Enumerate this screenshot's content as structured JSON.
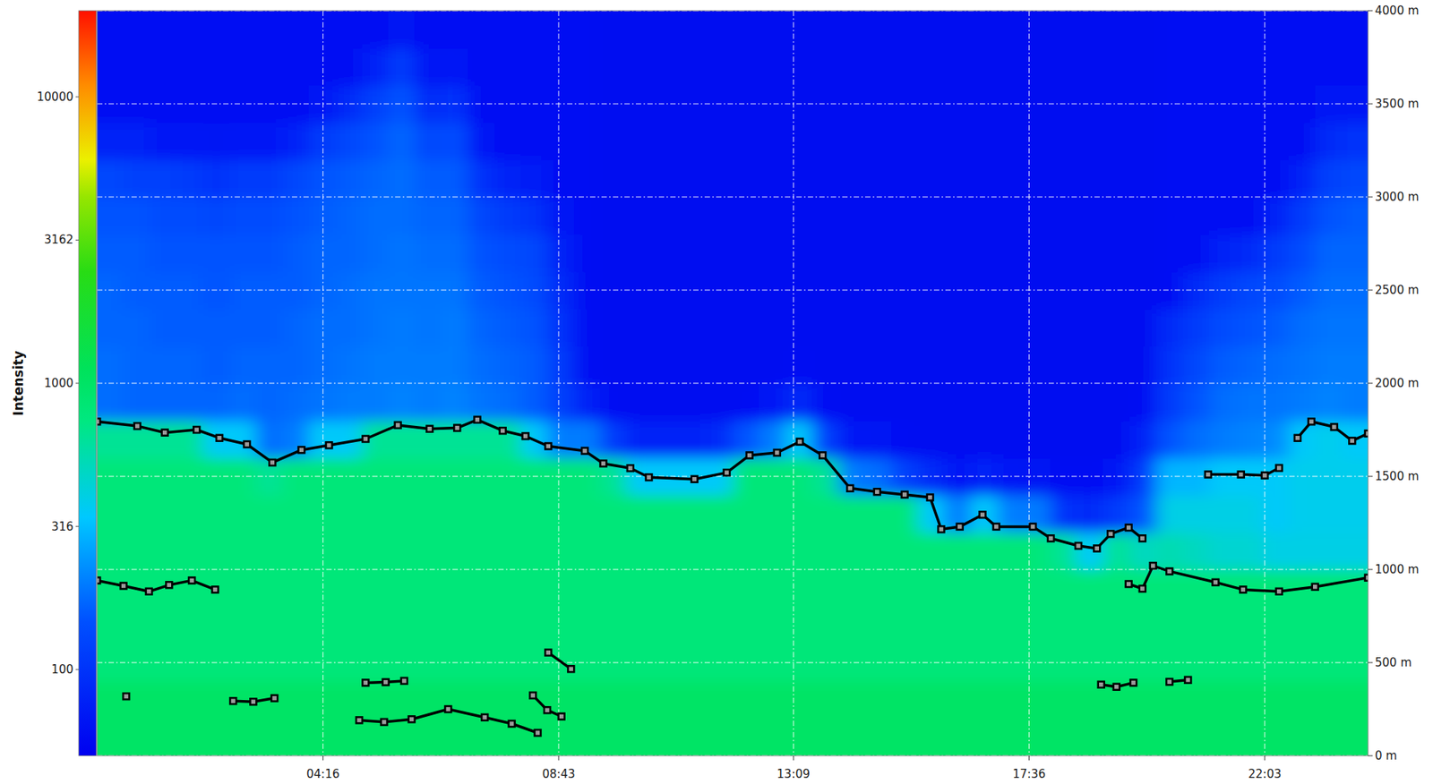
{
  "chart_data": {
    "type": "heatmap",
    "xlim": [
      0,
      24
    ],
    "xticks": [
      {
        "value": 4.2667,
        "label": "04:16"
      },
      {
        "value": 8.7167,
        "label": "08:43"
      },
      {
        "value": 13.15,
        "label": "13:09"
      },
      {
        "value": 17.6,
        "label": "17:36"
      },
      {
        "value": 22.05,
        "label": "22:03"
      }
    ],
    "ylim": [
      0,
      4000
    ],
    "yticks": [
      {
        "value": 0,
        "label": "0 m"
      },
      {
        "value": 500,
        "label": "500 m"
      },
      {
        "value": 1000,
        "label": "1000 m"
      },
      {
        "value": 1500,
        "label": "1500 m"
      },
      {
        "value": 2000,
        "label": "2000 m"
      },
      {
        "value": 2500,
        "label": "2500 m"
      },
      {
        "value": 3000,
        "label": "3000 m"
      },
      {
        "value": 3500,
        "label": "3500 m"
      },
      {
        "value": 4000,
        "label": "4000 m"
      }
    ],
    "grid": true,
    "colorbar": {
      "title": "Intensity",
      "range": [
        50,
        20000
      ],
      "ticks": [
        100,
        316,
        1000,
        3162,
        10000
      ],
      "log": true
    },
    "x_bins": [
      0,
      0.5,
      1,
      1.5,
      2,
      2.5,
      3,
      3.5,
      4,
      4.5,
      5,
      5.5,
      6,
      6.5,
      7,
      7.5,
      8,
      8.5,
      9,
      9.5,
      10,
      10.5,
      11,
      11.5,
      12,
      12.5,
      13,
      13.5,
      14,
      14.5,
      15,
      15.5,
      16,
      16.5,
      17,
      17.5,
      18,
      18.5,
      19,
      19.5,
      20,
      20.5,
      21,
      21.5,
      22,
      22.5,
      23,
      23.5,
      24
    ],
    "y_bins": [
      0,
      200,
      400,
      600,
      800,
      1000,
      1200,
      1400,
      1600,
      1800,
      2000,
      2200,
      2400,
      2600,
      2800,
      3000,
      3200,
      3400,
      3600,
      3800,
      4000
    ],
    "values": [
      [
        1000,
        1000,
        800,
        800,
        800,
        800,
        800,
        800,
        650,
        180,
        180,
        170,
        170,
        160,
        150,
        130,
        80,
        60,
        60,
        60
      ],
      [
        1000,
        1000,
        800,
        800,
        800,
        800,
        800,
        800,
        650,
        170,
        170,
        170,
        160,
        160,
        150,
        120,
        80,
        60,
        60,
        60
      ],
      [
        1000,
        1000,
        800,
        800,
        800,
        800,
        800,
        800,
        650,
        170,
        170,
        160,
        160,
        150,
        140,
        120,
        70,
        60,
        60,
        60
      ],
      [
        1000,
        1000,
        800,
        800,
        800,
        800,
        800,
        800,
        650,
        170,
        170,
        160,
        160,
        150,
        140,
        110,
        70,
        60,
        60,
        60
      ],
      [
        1000,
        1000,
        800,
        800,
        800,
        800,
        800,
        800,
        350,
        170,
        160,
        160,
        150,
        150,
        130,
        100,
        65,
        60,
        60,
        60
      ],
      [
        1000,
        1000,
        800,
        800,
        800,
        800,
        800,
        800,
        350,
        180,
        170,
        160,
        160,
        150,
        140,
        110,
        70,
        60,
        60,
        60
      ],
      [
        1000,
        1000,
        800,
        800,
        800,
        800,
        800,
        650,
        180,
        170,
        170,
        160,
        160,
        150,
        140,
        110,
        70,
        60,
        60,
        60
      ],
      [
        1000,
        1000,
        800,
        800,
        800,
        800,
        800,
        800,
        200,
        180,
        170,
        170,
        160,
        160,
        150,
        130,
        80,
        60,
        60,
        60
      ],
      [
        1000,
        1000,
        800,
        800,
        800,
        800,
        800,
        800,
        350,
        190,
        180,
        180,
        170,
        170,
        160,
        150,
        110,
        70,
        60,
        60
      ],
      [
        1000,
        1000,
        800,
        800,
        800,
        800,
        800,
        800,
        350,
        200,
        190,
        180,
        180,
        170,
        170,
        160,
        130,
        90,
        60,
        60
      ],
      [
        1000,
        1000,
        800,
        800,
        800,
        800,
        800,
        800,
        650,
        200,
        200,
        190,
        190,
        180,
        180,
        170,
        150,
        120,
        80,
        60
      ],
      [
        1000,
        1000,
        800,
        800,
        800,
        800,
        800,
        800,
        650,
        210,
        200,
        200,
        190,
        190,
        180,
        180,
        170,
        150,
        110,
        65
      ],
      [
        1000,
        1000,
        800,
        800,
        800,
        800,
        800,
        800,
        650,
        200,
        200,
        190,
        190,
        180,
        170,
        160,
        130,
        90,
        65,
        60
      ],
      [
        1000,
        1000,
        800,
        800,
        800,
        800,
        800,
        800,
        650,
        210,
        200,
        200,
        190,
        180,
        170,
        160,
        140,
        100,
        70,
        60
      ],
      [
        1000,
        1000,
        800,
        800,
        800,
        800,
        800,
        800,
        650,
        190,
        180,
        170,
        160,
        150,
        130,
        100,
        70,
        60,
        60,
        60
      ],
      [
        1000,
        1000,
        800,
        800,
        800,
        800,
        800,
        800,
        650,
        180,
        170,
        160,
        150,
        140,
        110,
        80,
        60,
        60,
        60,
        60
      ],
      [
        1000,
        1000,
        800,
        800,
        800,
        800,
        800,
        800,
        350,
        160,
        160,
        150,
        140,
        130,
        100,
        75,
        60,
        60,
        60,
        60
      ],
      [
        1000,
        1000,
        800,
        800,
        800,
        800,
        800,
        800,
        200,
        120,
        110,
        100,
        90,
        80,
        70,
        60,
        60,
        60,
        60,
        60
      ],
      [
        1000,
        1000,
        800,
        800,
        800,
        800,
        800,
        800,
        200,
        80,
        60,
        60,
        60,
        60,
        60,
        60,
        60,
        60,
        60,
        60
      ],
      [
        1000,
        1000,
        800,
        800,
        800,
        800,
        800,
        650,
        110,
        60,
        55,
        55,
        55,
        55,
        55,
        55,
        55,
        55,
        55,
        55
      ],
      [
        1000,
        1000,
        800,
        800,
        800,
        800,
        800,
        350,
        80,
        55,
        55,
        55,
        55,
        55,
        55,
        55,
        55,
        55,
        55,
        55
      ],
      [
        1000,
        1000,
        800,
        800,
        800,
        800,
        800,
        350,
        80,
        55,
        55,
        55,
        55,
        55,
        55,
        55,
        55,
        55,
        55,
        55
      ],
      [
        1000,
        1000,
        800,
        800,
        800,
        800,
        800,
        350,
        80,
        55,
        55,
        55,
        55,
        55,
        55,
        55,
        55,
        55,
        55,
        55
      ],
      [
        1000,
        1000,
        800,
        800,
        800,
        800,
        800,
        350,
        90,
        55,
        55,
        55,
        55,
        55,
        55,
        55,
        55,
        55,
        55,
        55
      ],
      [
        1000,
        1000,
        800,
        800,
        800,
        800,
        800,
        800,
        150,
        60,
        55,
        55,
        55,
        55,
        55,
        55,
        55,
        55,
        55,
        55
      ],
      [
        1000,
        1000,
        800,
        800,
        800,
        800,
        800,
        800,
        200,
        70,
        55,
        55,
        55,
        55,
        55,
        55,
        55,
        55,
        55,
        55
      ],
      [
        1000,
        1000,
        800,
        800,
        800,
        800,
        800,
        800,
        350,
        90,
        60,
        55,
        55,
        55,
        55,
        55,
        55,
        55,
        55,
        55
      ],
      [
        1000,
        1000,
        800,
        800,
        800,
        800,
        800,
        650,
        120,
        60,
        55,
        55,
        55,
        55,
        55,
        55,
        55,
        55,
        55,
        55
      ],
      [
        1000,
        1000,
        800,
        800,
        800,
        800,
        800,
        200,
        70,
        55,
        55,
        55,
        55,
        55,
        55,
        55,
        55,
        55,
        55,
        55
      ],
      [
        1000,
        1000,
        800,
        800,
        800,
        800,
        800,
        180,
        65,
        55,
        55,
        55,
        55,
        55,
        55,
        55,
        55,
        55,
        55,
        55
      ],
      [
        1000,
        1000,
        800,
        800,
        800,
        800,
        800,
        120,
        60,
        55,
        55,
        55,
        55,
        55,
        55,
        55,
        55,
        55,
        55,
        55
      ],
      [
        1000,
        1000,
        800,
        800,
        800,
        800,
        350,
        90,
        55,
        55,
        55,
        55,
        55,
        55,
        55,
        55,
        55,
        55,
        55,
        55
      ],
      [
        1000,
        1000,
        800,
        800,
        800,
        800,
        200,
        70,
        55,
        55,
        55,
        55,
        55,
        55,
        55,
        55,
        55,
        55,
        55,
        55
      ],
      [
        1000,
        1000,
        800,
        800,
        800,
        800,
        350,
        80,
        55,
        55,
        55,
        55,
        55,
        55,
        55,
        55,
        55,
        55,
        55,
        55
      ],
      [
        1000,
        1000,
        800,
        800,
        800,
        800,
        200,
        70,
        55,
        55,
        55,
        55,
        55,
        55,
        55,
        55,
        55,
        55,
        55,
        55
      ],
      [
        1000,
        1000,
        800,
        800,
        800,
        800,
        200,
        65,
        55,
        55,
        55,
        55,
        55,
        55,
        55,
        55,
        55,
        55,
        55,
        55
      ],
      [
        1000,
        1000,
        800,
        800,
        800,
        650,
        100,
        60,
        55,
        55,
        55,
        55,
        55,
        55,
        55,
        55,
        55,
        55,
        55,
        55
      ],
      [
        1000,
        1000,
        800,
        800,
        800,
        350,
        90,
        60,
        55,
        55,
        55,
        55,
        55,
        55,
        55,
        55,
        55,
        55,
        55,
        55
      ],
      [
        1000,
        1000,
        800,
        800,
        800,
        650,
        110,
        70,
        55,
        55,
        55,
        55,
        55,
        55,
        55,
        55,
        55,
        55,
        55,
        55
      ],
      [
        1000,
        1000,
        800,
        800,
        800,
        500,
        150,
        110,
        80,
        60,
        55,
        55,
        55,
        55,
        55,
        55,
        55,
        55,
        55,
        55
      ],
      [
        1000,
        1000,
        800,
        800,
        800,
        550,
        400,
        300,
        150,
        110,
        100,
        90,
        60,
        60,
        60,
        60,
        60,
        60,
        60,
        60
      ],
      [
        1000,
        1000,
        800,
        800,
        800,
        500,
        400,
        300,
        180,
        150,
        130,
        110,
        90,
        60,
        60,
        60,
        60,
        60,
        60,
        60
      ],
      [
        1000,
        1000,
        800,
        800,
        800,
        450,
        400,
        350,
        200,
        180,
        160,
        140,
        110,
        80,
        60,
        60,
        60,
        60,
        60,
        60
      ],
      [
        1000,
        1000,
        800,
        800,
        800,
        450,
        400,
        350,
        210,
        190,
        170,
        150,
        130,
        90,
        60,
        60,
        60,
        60,
        60,
        60
      ],
      [
        1000,
        1000,
        800,
        800,
        800,
        400,
        350,
        350,
        220,
        190,
        180,
        160,
        140,
        110,
        80,
        60,
        60,
        60,
        60,
        60
      ],
      [
        1000,
        1000,
        800,
        800,
        800,
        400,
        380,
        380,
        350,
        200,
        190,
        180,
        160,
        140,
        110,
        80,
        60,
        60,
        60,
        60
      ],
      [
        1000,
        1000,
        800,
        800,
        800,
        400,
        380,
        380,
        380,
        210,
        200,
        190,
        180,
        170,
        150,
        120,
        90,
        70,
        60,
        60
      ],
      [
        1000,
        1000,
        800,
        800,
        800,
        400,
        380,
        380,
        350,
        200,
        200,
        190,
        180,
        170,
        160,
        130,
        100,
        70,
        60,
        60
      ]
    ],
    "series": [
      {
        "type": "line",
        "color": "#000000",
        "marker": "square",
        "x": [
          0,
          0.76,
          1.28,
          1.88,
          2.31,
          2.83,
          3.31,
          3.86,
          4.38,
          5.07,
          5.68,
          6.28,
          6.8,
          7.18,
          7.66,
          8.09,
          8.52,
          9.21,
          9.56,
          10.07,
          10.42,
          11.28,
          11.89,
          12.32,
          12.84,
          13.27,
          13.7,
          14.22,
          14.73,
          15.25,
          15.73,
          15.94,
          16.29,
          16.72,
          16.98,
          17.67,
          18.01,
          18.53,
          18.88,
          19.14,
          19.48,
          19.74
        ],
        "values": [
          1794,
          1770,
          1735,
          1750,
          1706,
          1672,
          1574,
          1642,
          1667,
          1701,
          1775,
          1755,
          1760,
          1804,
          1745,
          1716,
          1662,
          1637,
          1569,
          1544,
          1495,
          1485,
          1520,
          1613,
          1627,
          1686,
          1613,
          1436,
          1417,
          1402,
          1387,
          1216,
          1230,
          1294,
          1230,
          1230,
          1167,
          1127,
          1113,
          1191,
          1225,
          1167
        ]
      },
      {
        "type": "line",
        "color": "#000000",
        "marker": "square",
        "x": [
          20.98,
          21.6,
          22.05,
          22.32
        ],
        "values": [
          1510,
          1510,
          1505,
          1545
        ]
      },
      {
        "type": "line",
        "color": "#000000",
        "marker": "square",
        "x": [
          22.67,
          22.93,
          23.36,
          23.7,
          24
        ],
        "values": [
          1706,
          1794,
          1765,
          1691,
          1730
        ]
      },
      {
        "type": "line",
        "color": "#000000",
        "marker": "square",
        "x": [
          0,
          0.5,
          0.98,
          1.36,
          1.79,
          2.23
        ],
        "values": [
          941,
          912,
          882,
          917,
          941,
          892
        ]
      },
      {
        "type": "line",
        "color": "#000000",
        "marker": "square",
        "x": [
          19.48,
          19.74,
          19.94,
          20.25,
          21.12,
          21.64,
          22.32,
          23.0,
          24
        ],
        "values": [
          922,
          897,
          1020,
          990,
          931,
          892,
          882,
          907,
          956
        ]
      },
      {
        "type": "line",
        "color": "#000000",
        "marker": "square",
        "x": [
          0.55
        ],
        "values": [
          319
        ]
      },
      {
        "type": "line",
        "color": "#000000",
        "marker": "square",
        "x": [
          2.57,
          2.95,
          3.35
        ],
        "values": [
          294,
          290,
          309
        ]
      },
      {
        "type": "line",
        "color": "#000000",
        "marker": "square",
        "x": [
          5.07,
          5.45,
          5.8
        ],
        "values": [
          392,
          395,
          402
        ]
      },
      {
        "type": "line",
        "color": "#000000",
        "marker": "square",
        "x": [
          4.95,
          5.42,
          5.94,
          6.63,
          7.32,
          7.83,
          8.32
        ],
        "values": [
          191,
          181,
          196,
          250,
          206,
          172,
          123
        ]
      },
      {
        "type": "line",
        "color": "#000000",
        "marker": "square",
        "x": [
          8.23,
          8.5,
          8.77
        ],
        "values": [
          324,
          245,
          211
        ]
      },
      {
        "type": "line",
        "color": "#000000",
        "marker": "square",
        "x": [
          8.52,
          8.95
        ],
        "values": [
          554,
          466
        ]
      },
      {
        "type": "line",
        "color": "#000000",
        "marker": "square",
        "x": [
          18.96,
          19.25,
          19.57
        ],
        "values": [
          382,
          370,
          392
        ]
      },
      {
        "type": "line",
        "color": "#000000",
        "marker": "square",
        "x": [
          20.25,
          20.6
        ],
        "values": [
          397,
          407
        ]
      }
    ]
  }
}
